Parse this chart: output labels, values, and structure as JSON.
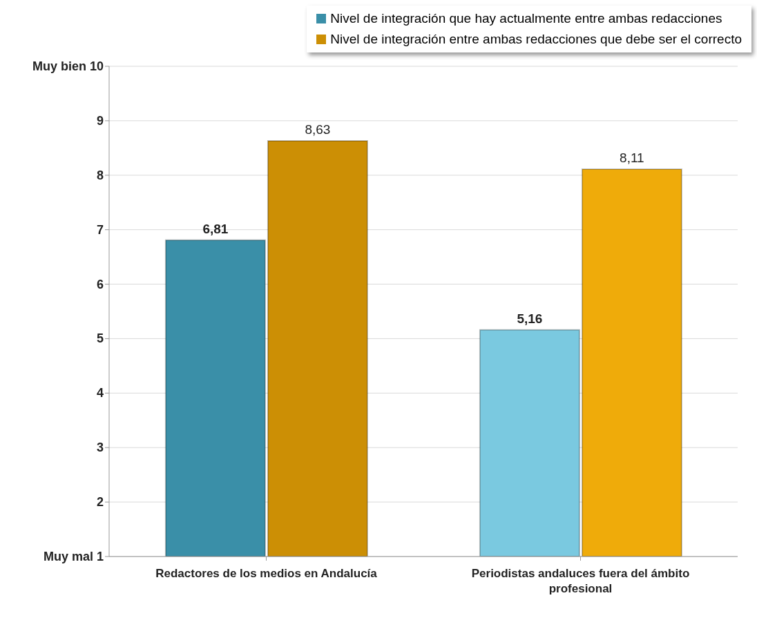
{
  "chart_data": {
    "type": "bar",
    "categories": [
      "Redactores de los medios en Andalucía",
      "Periodistas andaluces fuera del ámbito profesional"
    ],
    "series": [
      {
        "name": "Nivel de integración que hay actualmente entre ambas redacciones",
        "color": "#3a8fa8",
        "colors": [
          "#3a8fa8",
          "#7ac9e0"
        ],
        "values": [
          6.81,
          5.16
        ],
        "value_labels": [
          "6,81",
          "5,16"
        ]
      },
      {
        "name": "Nivel de integración entre ambas redacciones que debe ser el correcto",
        "color": "#cc8f05",
        "colors": [
          "#cc8f05",
          "#efab0a"
        ],
        "values": [
          8.63,
          8.11
        ],
        "value_labels": [
          "8,63",
          "8,11"
        ]
      }
    ],
    "ylim": [
      1,
      10
    ],
    "yticks": [
      {
        "value": 1,
        "label": "Muy mal 1"
      },
      2,
      3,
      4,
      5,
      6,
      7,
      8,
      9,
      {
        "value": 10,
        "label": "Muy bien 10"
      }
    ],
    "grid": "y",
    "legend": "top right"
  }
}
